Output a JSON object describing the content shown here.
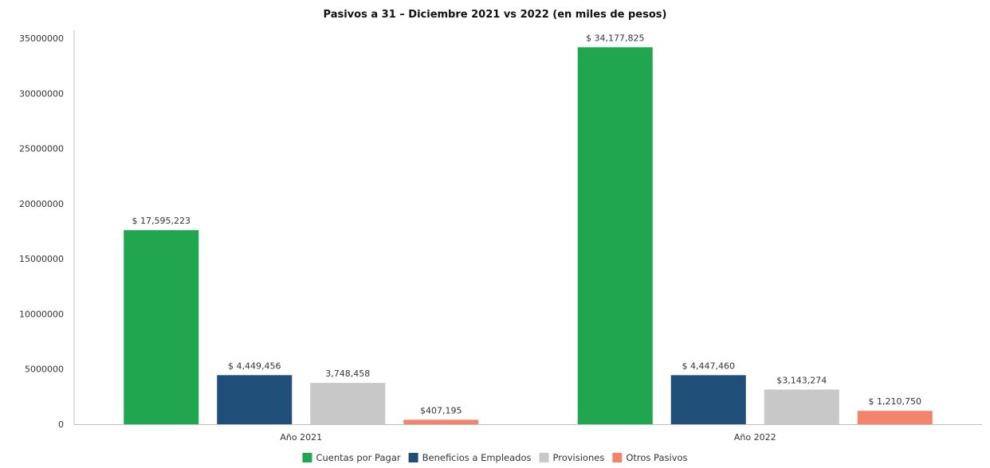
{
  "chart_data": {
    "type": "bar",
    "title": "Pasivos a 31 – Diciembre 2021 vs 2022 (en miles de pesos)",
    "xlabel": "",
    "ylabel": "",
    "categories": [
      "Año 2021",
      "Año 2022"
    ],
    "ylim": [
      0,
      35000000
    ],
    "yticks": [
      0,
      5000000,
      10000000,
      15000000,
      20000000,
      25000000,
      30000000,
      35000000
    ],
    "ytick_labels": [
      "0",
      "5000000",
      "10000000",
      "15000000",
      "20000000",
      "25000000",
      "30000000",
      "35000000"
    ],
    "grid": false,
    "legend_position": "bottom",
    "series": [
      {
        "name": "Cuentas por Pagar",
        "color": "#1fa64e",
        "values": [
          17595223,
          34177825
        ],
        "labels": [
          "$ 17,595,223",
          "$ 34,177,825"
        ]
      },
      {
        "name": "Beneficios a Empleados",
        "color": "#1f4e79",
        "values": [
          4449456,
          4447460
        ],
        "labels": [
          "$ 4,449,456",
          "$ 4,447,460"
        ]
      },
      {
        "name": "Provisiones",
        "color": "#c8c8c8",
        "values": [
          3748458,
          3143274
        ],
        "labels": [
          "3,748,458",
          "$3,143,274"
        ]
      },
      {
        "name": "Otros Pasivos",
        "color": "#f4836b",
        "values": [
          407195,
          1210750
        ],
        "labels": [
          "$407,195",
          "$ 1,210,750"
        ]
      }
    ]
  }
}
